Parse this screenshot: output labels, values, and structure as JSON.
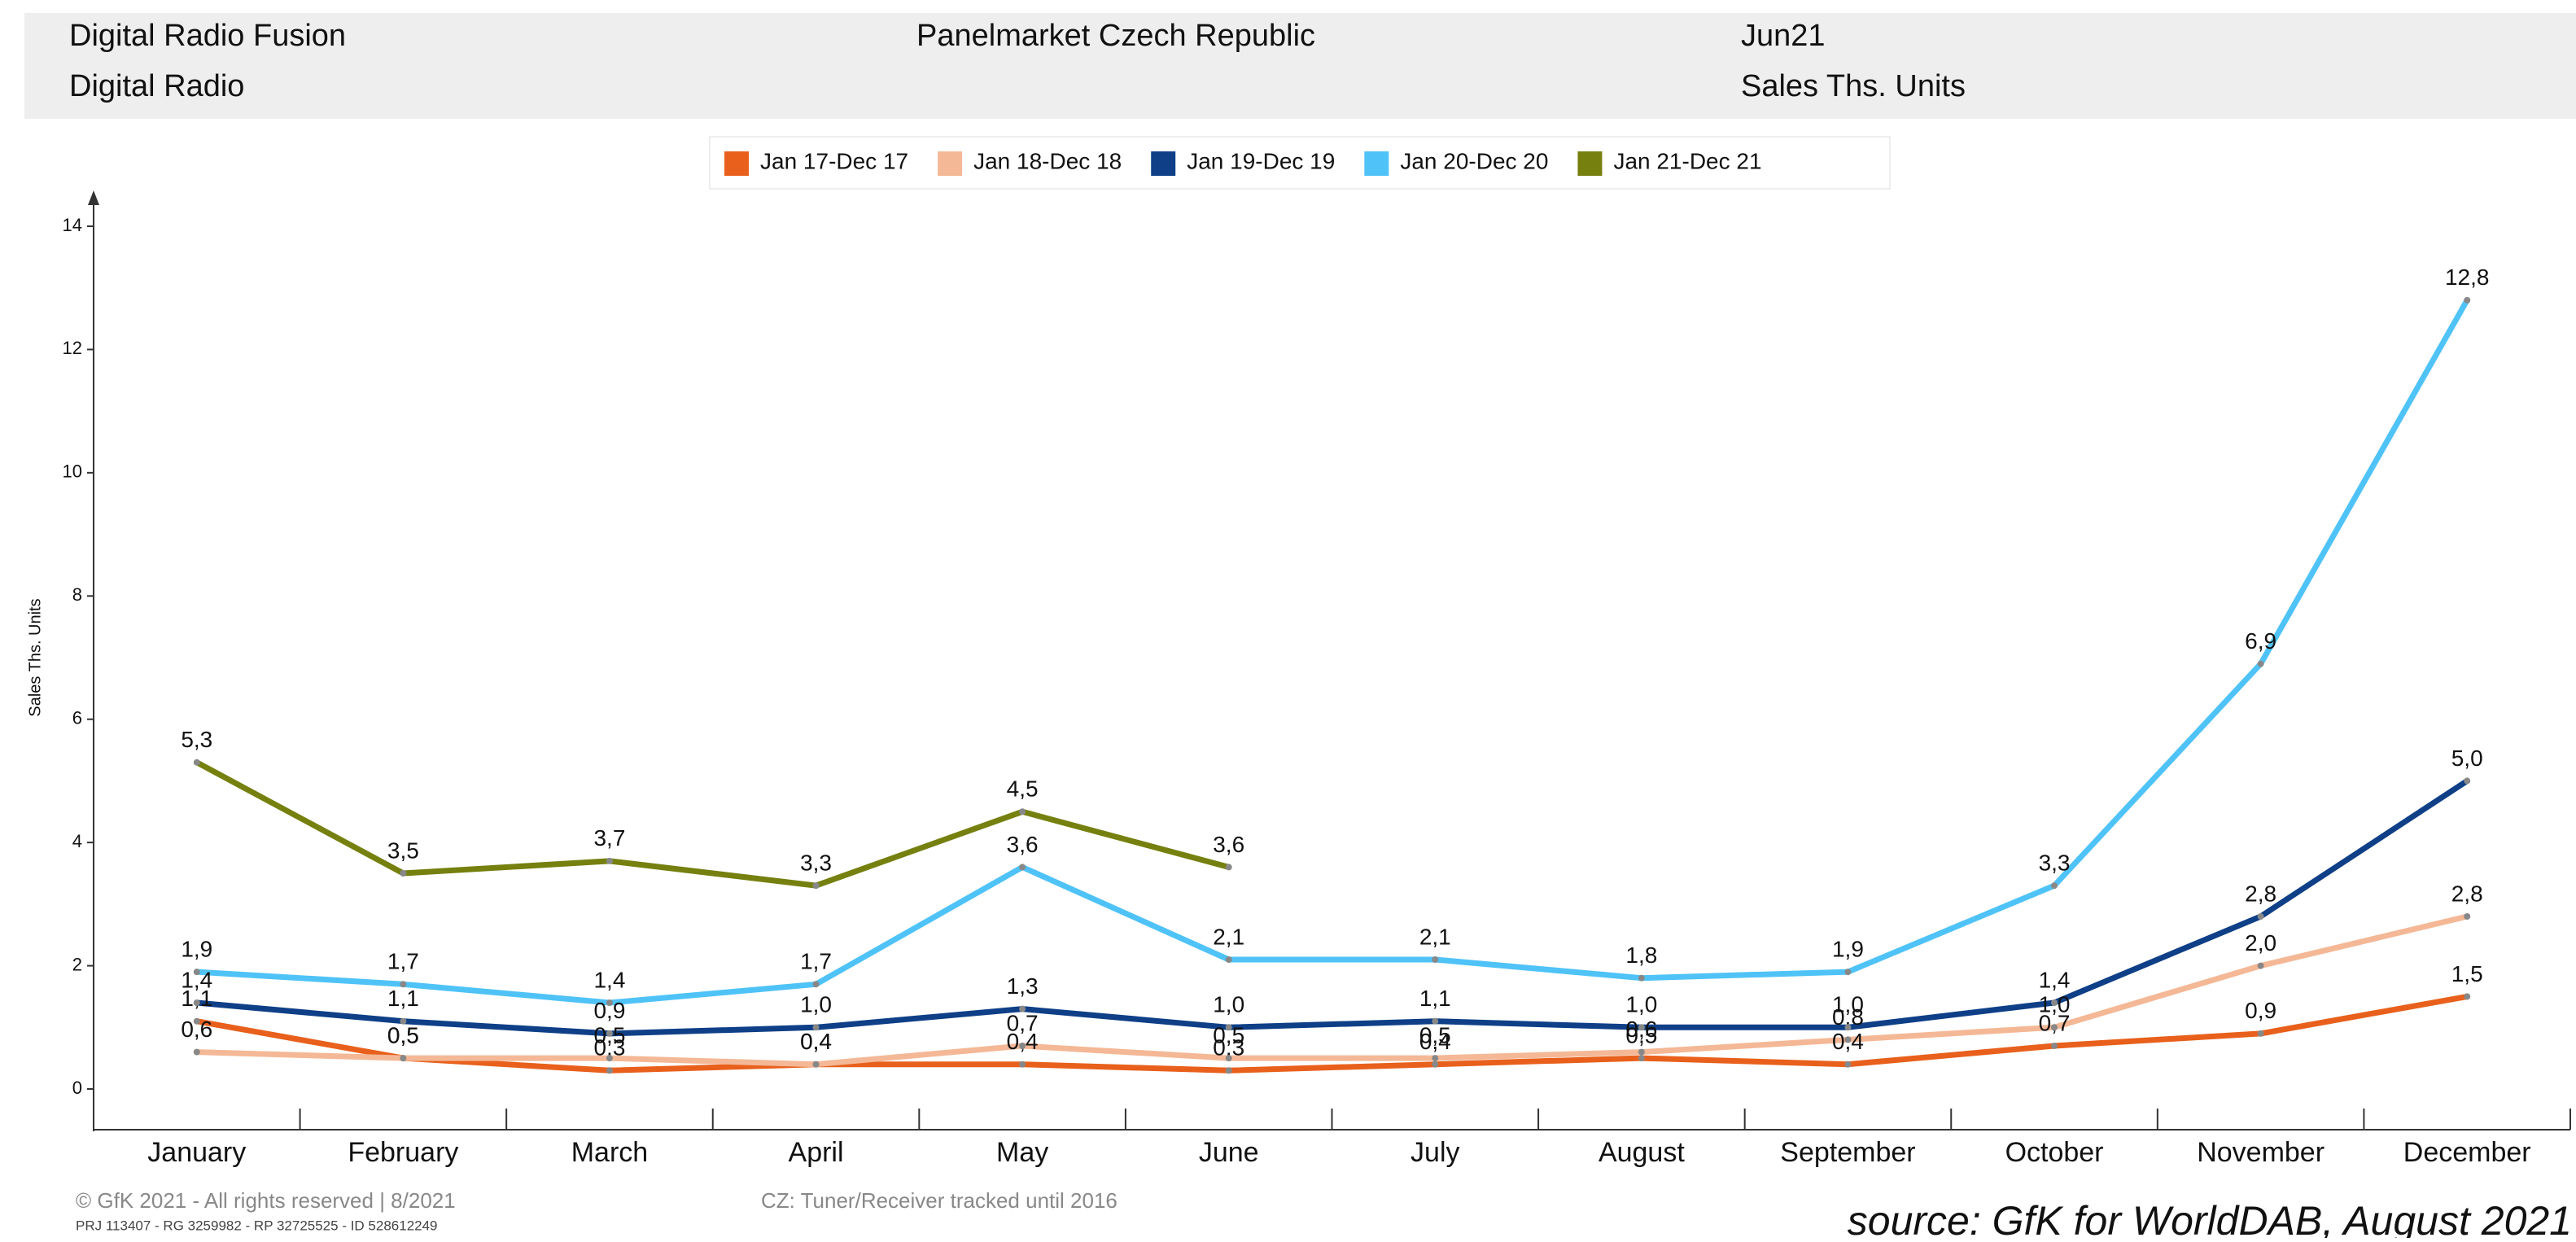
{
  "header": {
    "title": "Digital Radio Fusion",
    "subtitle": "Digital Radio",
    "panel": "Panelmarket Czech Republic",
    "period": "Jun21",
    "measure": "Sales Ths. Units"
  },
  "footer": {
    "copyright": "© GfK 2021 - All rights reserved | 8/2021",
    "ids": "PRJ 113407 - RG 3259982 - RP 32725525 - ID 528612249",
    "note": "CZ: Tuner/Receiver tracked until 2016",
    "source": "source: GfK for WorldDAB, August 2021"
  },
  "chart_data": {
    "type": "line",
    "y_label": "Sales Ths. Units",
    "categories": [
      "January",
      "February",
      "March",
      "April",
      "May",
      "June",
      "July",
      "August",
      "September",
      "October",
      "November",
      "December"
    ],
    "ylim": [
      0,
      14
    ],
    "yticks": [
      0,
      2,
      4,
      6,
      8,
      10,
      12,
      14
    ],
    "series": [
      {
        "name": "Jan 17-Dec 17",
        "color": "#e8601c",
        "values": [
          1.1,
          0.5,
          0.3,
          0.4,
          0.4,
          0.3,
          0.4,
          0.5,
          0.4,
          0.7,
          0.9,
          1.5
        ],
        "value_labels": [
          "1,1",
          "0,5",
          "0,3",
          "0,4",
          "0,4",
          "0,3",
          "0,4",
          "0,5",
          "0,4",
          "0,7",
          "0,9",
          "1,5"
        ]
      },
      {
        "name": "Jan 18-Dec 18",
        "color": "#f4b896",
        "values": [
          0.6,
          0.5,
          0.5,
          0.4,
          0.7,
          0.5,
          0.5,
          0.6,
          0.8,
          1.0,
          2.0,
          2.8
        ],
        "value_labels": [
          "0,6",
          "0,5",
          "0,5",
          "0,4",
          "0,7",
          "0,5",
          "0,5",
          "0,6",
          "0,8",
          "1,0",
          "2,0",
          "2,8"
        ]
      },
      {
        "name": "Jan 19-Dec 19",
        "color": "#0e3f87",
        "values": [
          1.4,
          1.1,
          0.9,
          1.0,
          1.3,
          1.0,
          1.1,
          1.0,
          1.0,
          1.4,
          2.8,
          5.0
        ],
        "value_labels": [
          "1,4",
          "1,1",
          "0,9",
          "1,0",
          "1,3",
          "1,0",
          "1,1",
          "1,0",
          "1,0",
          "1,4",
          "2,8",
          "5,0"
        ]
      },
      {
        "name": "Jan 20-Dec 20",
        "color": "#4fc3f7",
        "values": [
          1.9,
          1.7,
          1.4,
          1.7,
          3.6,
          2.1,
          2.1,
          1.8,
          1.9,
          3.3,
          6.9,
          12.8
        ],
        "value_labels": [
          "1,9",
          "1,7",
          "1,4",
          "1,7",
          "3,6",
          "2,1",
          "2,1",
          "1,8",
          "1,9",
          "3,3",
          "6,9",
          "12,8"
        ]
      },
      {
        "name": "Jan 21-Dec 21",
        "color": "#75800f",
        "values": [
          5.3,
          3.5,
          3.7,
          3.3,
          4.5,
          3.6,
          null,
          null,
          null,
          null,
          null,
          null
        ],
        "value_labels": [
          "5,3",
          "3,5",
          "3,7",
          "3,3",
          "4,5",
          "3,6",
          null,
          null,
          null,
          null,
          null,
          null
        ]
      }
    ]
  }
}
